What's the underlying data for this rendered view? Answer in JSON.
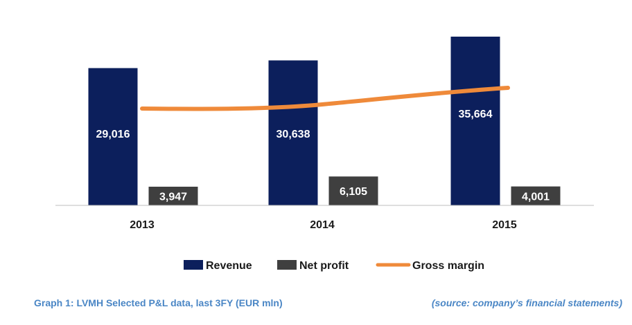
{
  "chart_data": {
    "type": "bar",
    "categories": [
      "2013",
      "2014",
      "2015"
    ],
    "series": [
      {
        "name": "Revenue",
        "type": "bar",
        "values": [
          29016,
          30638,
          35664
        ],
        "labels": [
          "29,016",
          "30,638",
          "35,664"
        ],
        "color": "#0c1f5c"
      },
      {
        "name": "Net profit",
        "type": "bar",
        "values": [
          3947,
          6105,
          4001
        ],
        "labels": [
          "3,947",
          "6,105",
          "4,001"
        ],
        "color": "#3f3f3f"
      },
      {
        "name": "Gross margin",
        "type": "line",
        "color": "#ef8a3a"
      }
    ],
    "ylim": [
      0,
      38000
    ],
    "grid": false,
    "legend": "bottom"
  },
  "caption": {
    "title": "Graph 1: LVMH Selected P&L data, last 3FY (EUR mln)",
    "source": "(source: company’s financial statements)"
  }
}
